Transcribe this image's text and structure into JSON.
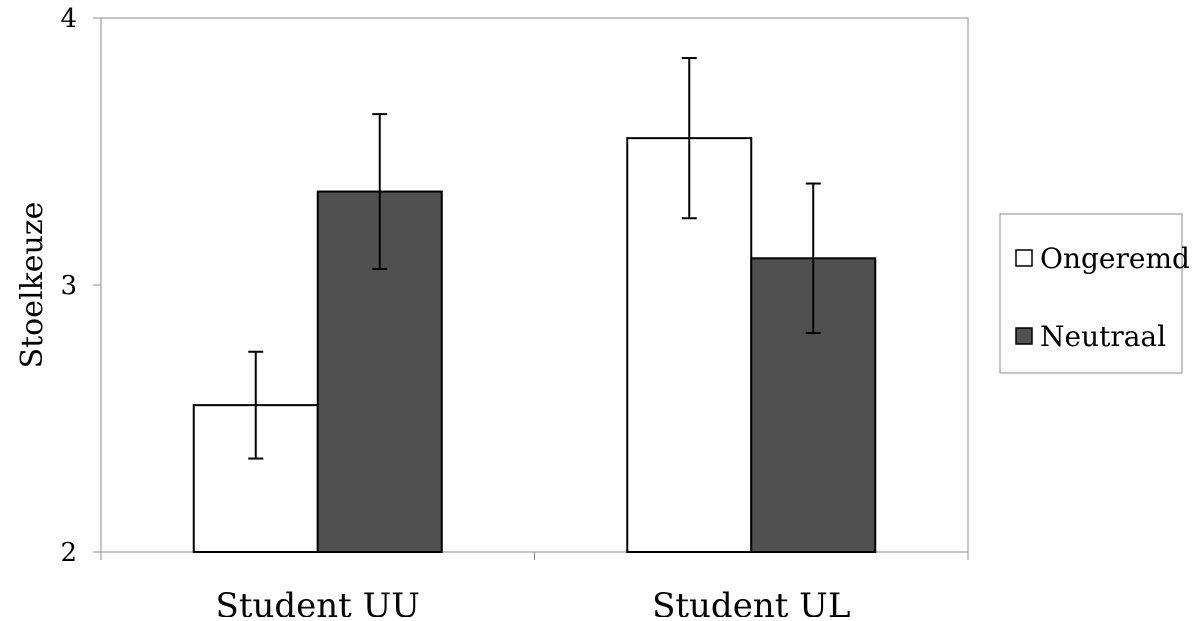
{
  "chart_data": {
    "type": "bar",
    "title": "",
    "xlabel": "",
    "ylabel": "Stoelkeuze",
    "ylim": [
      2,
      4
    ],
    "yticks": [
      "2",
      "3",
      "4"
    ],
    "categories": [
      "Student UU",
      "Student UL"
    ],
    "series": [
      {
        "name": "Ongeremd",
        "color": "#ffffff",
        "values": [
          2.55,
          3.55
        ],
        "error_low": [
          2.35,
          3.25
        ],
        "error_high": [
          2.75,
          3.85
        ]
      },
      {
        "name": "Neutraal",
        "color": "#505050",
        "values": [
          3.35,
          3.1
        ],
        "error_low": [
          3.06,
          2.82
        ],
        "error_high": [
          3.64,
          3.38
        ]
      }
    ],
    "grid": false,
    "legend_position": "right",
    "colors": {
      "axis": "#8c8c8c",
      "bar_stroke": "#000000"
    }
  }
}
